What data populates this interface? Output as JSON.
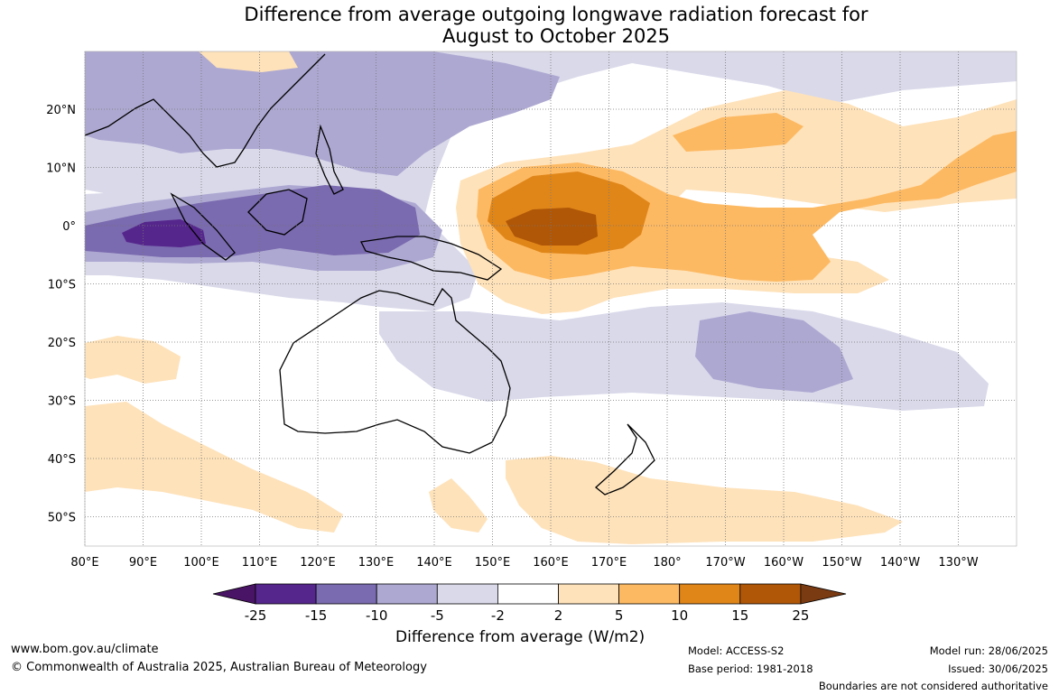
{
  "title": {
    "line1": "Difference from average outgoing longwave radiation forecast for",
    "line2": "August to October 2025"
  },
  "map": {
    "lat_labels": [
      "20°N",
      "10°N",
      "0°",
      "10°S",
      "20°S",
      "30°S",
      "40°S",
      "50°S"
    ],
    "lon_labels": [
      "80°E",
      "90°E",
      "100°E",
      "110°E",
      "120°E",
      "130°E",
      "140°E",
      "150°E",
      "160°E",
      "170°E",
      "180°",
      "170°W",
      "160°W",
      "150°W",
      "140°W",
      "130°W"
    ]
  },
  "colorbar": {
    "title": "Difference from average (W/m2)",
    "ticks": [
      "-25",
      "-15",
      "-10",
      "-5",
      "-2",
      "2",
      "5",
      "10",
      "15",
      "25"
    ],
    "colors": [
      "#4a1466",
      "#55268c",
      "#7a6aaf",
      "#ada8d1",
      "#d9d9ea",
      "#ffffff",
      "#fee2ba",
      "#fdb962",
      "#e08619",
      "#b05707",
      "#7a3a12"
    ]
  },
  "footer": {
    "website": "www.bom.gov.au/climate",
    "copyright": "© Commonwealth of Australia 2025, Australian Bureau of Meteorology",
    "model": "Model: ACCESS-S2",
    "base_period": "Base period: 1981-2018",
    "model_run": "Model run: 28/06/2025",
    "issued": "Issued: 30/06/2025",
    "disclaimer": "Boundaries are not considered authoritative"
  }
}
